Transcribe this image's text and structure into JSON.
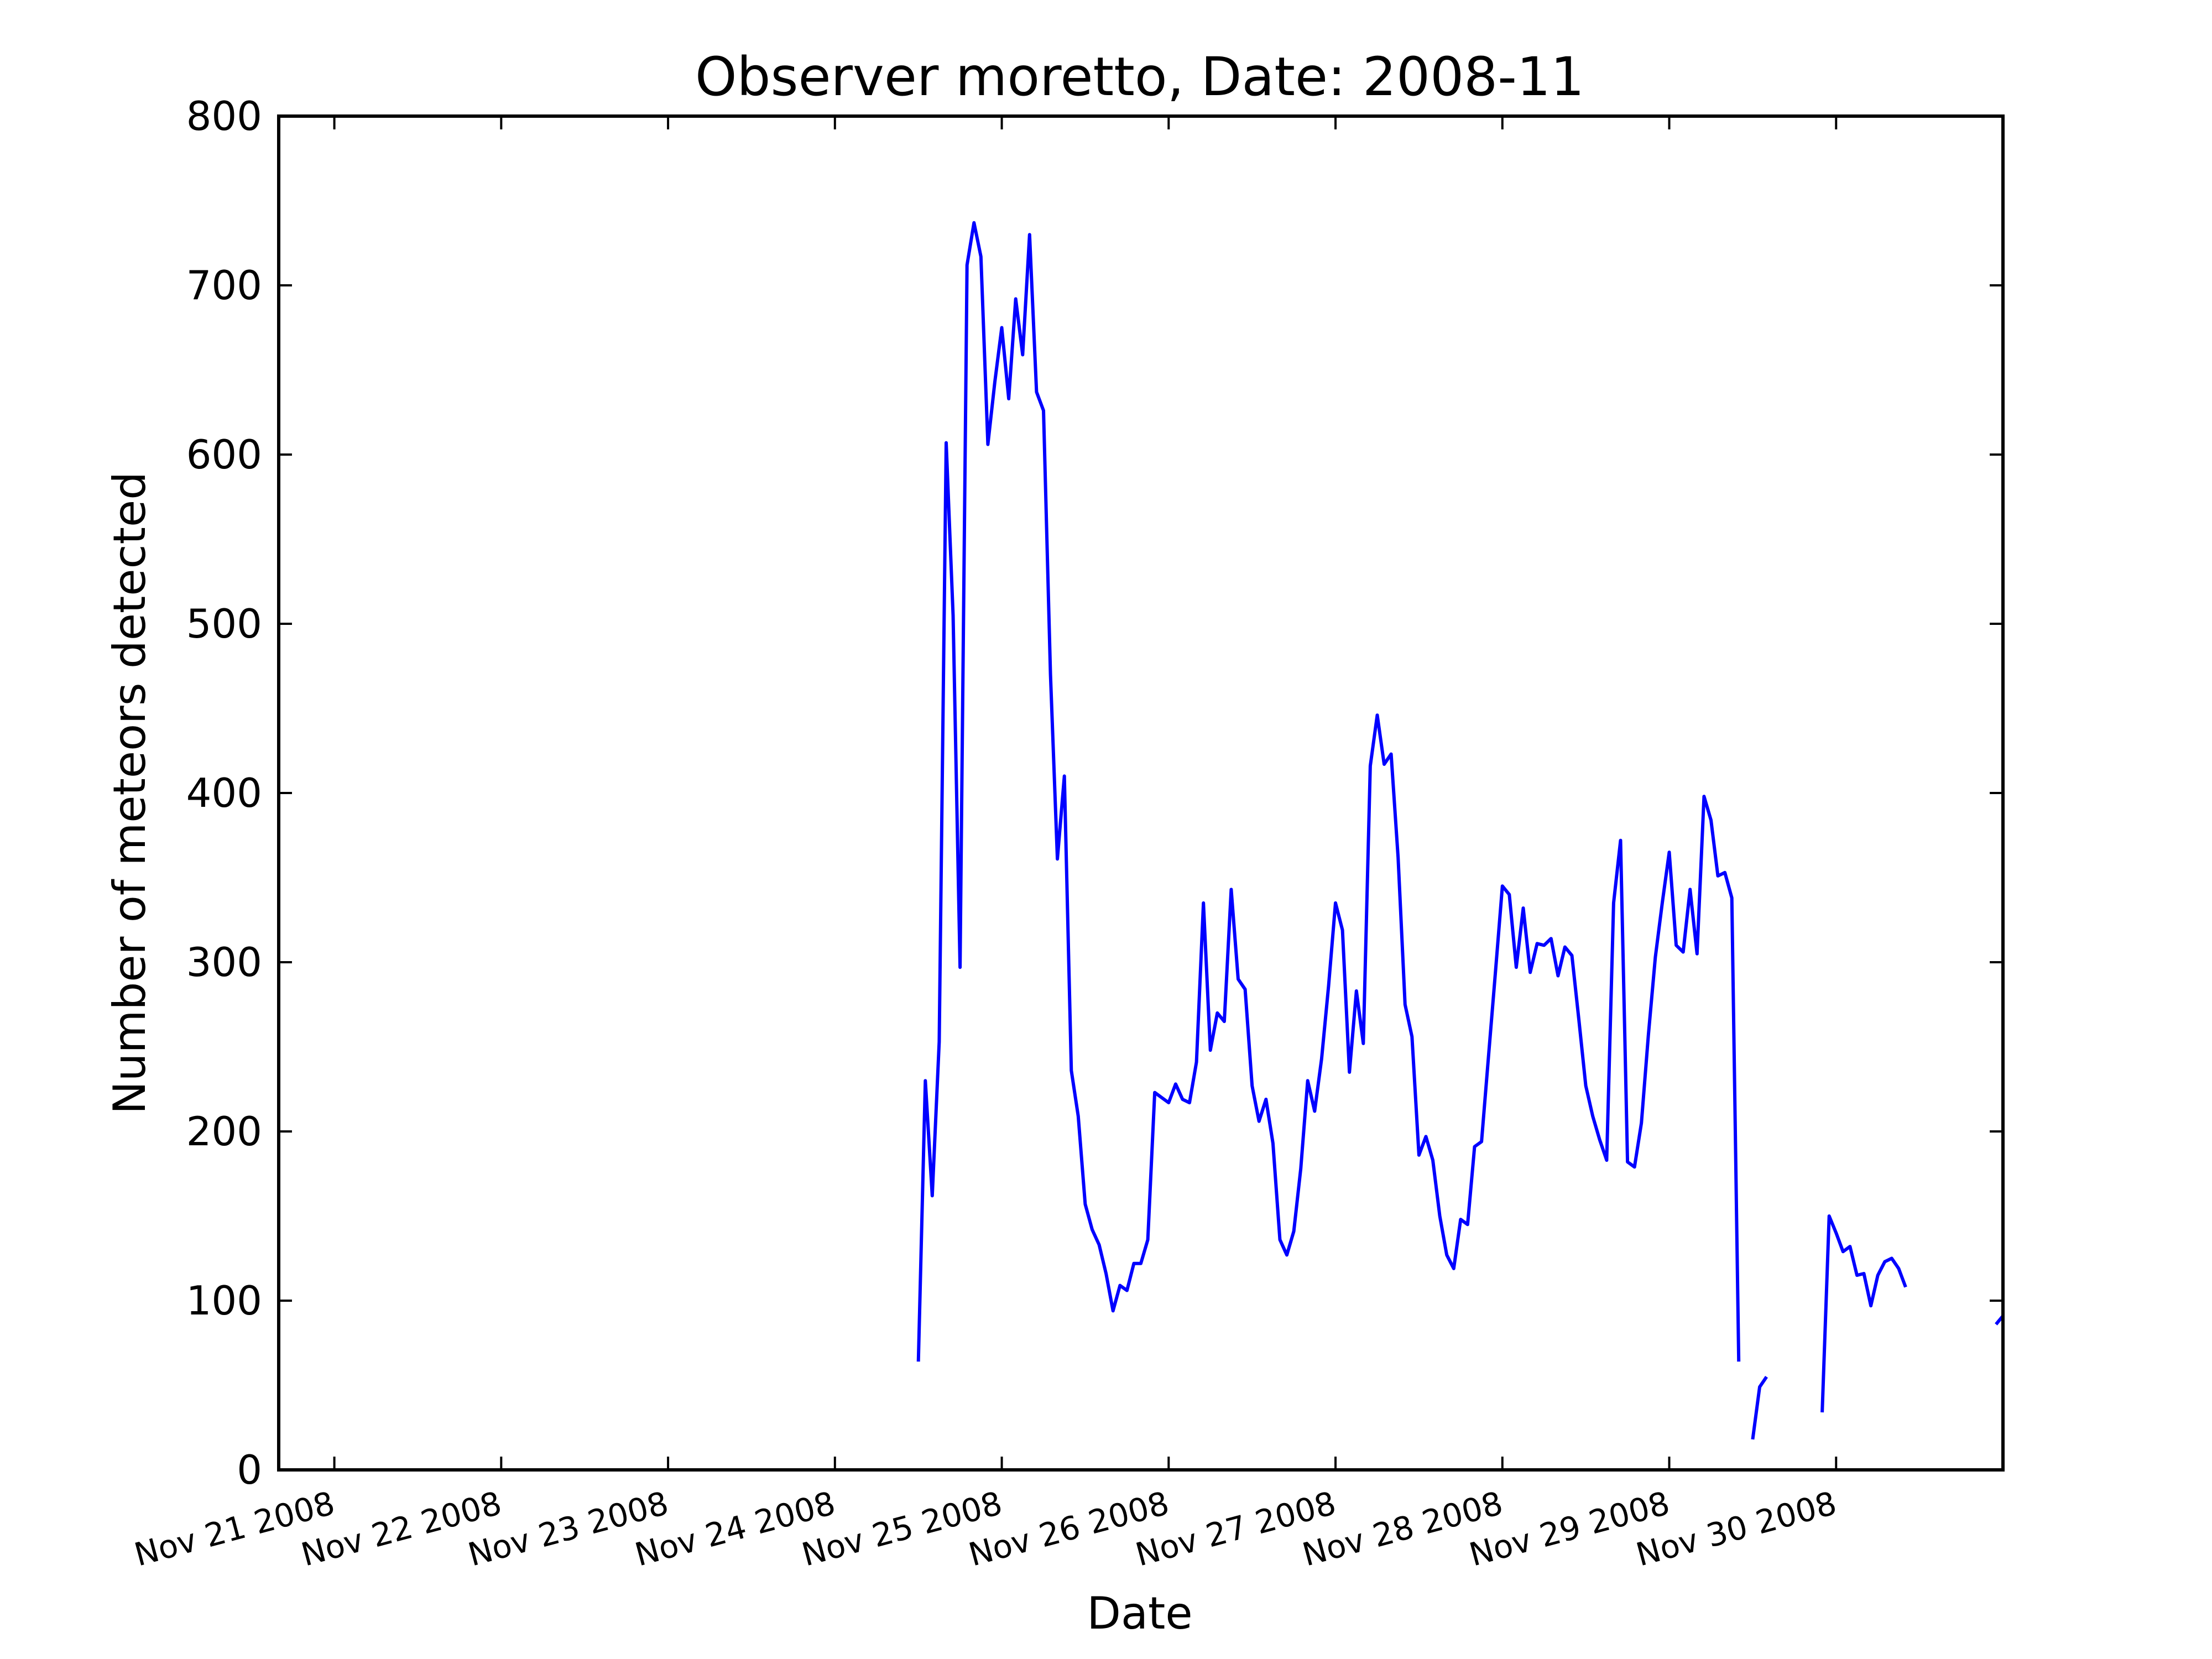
{
  "chart_data": {
    "type": "line",
    "title": "Observer moretto, Date: 2008-11",
    "xlabel": "Date",
    "ylabel": "Number of meteors detected",
    "xlim": [
      "2008-11-20 16:00",
      "2008-12-01 00:00"
    ],
    "ylim": [
      0,
      800
    ],
    "yticks": [
      0,
      100,
      200,
      300,
      400,
      500,
      600,
      700,
      800
    ],
    "xtick_dates": [
      "2008-11-21",
      "2008-11-22",
      "2008-11-23",
      "2008-11-24",
      "2008-11-25",
      "2008-11-26",
      "2008-11-27",
      "2008-11-28",
      "2008-11-29",
      "2008-11-30"
    ],
    "xtick_labels": [
      "Nov 21 2008",
      "Nov 22 2008",
      "Nov 23 2008",
      "Nov 24 2008",
      "Nov 25 2008",
      "Nov 26 2008",
      "Nov 27 2008",
      "Nov 28 2008",
      "Nov 29 2008",
      "Nov 30 2008"
    ],
    "grid": false,
    "line_color": "#0000ff",
    "series": [
      {
        "segments": [
          [
            [
              "2008-11-24 12:00",
              64
            ],
            [
              "2008-11-24 13:00",
              230
            ],
            [
              "2008-11-24 14:00",
              162
            ],
            [
              "2008-11-24 15:00",
              253
            ],
            [
              "2008-11-24 16:00",
              607
            ],
            [
              "2008-11-24 17:00",
              505
            ],
            [
              "2008-11-24 18:00",
              297
            ],
            [
              "2008-11-24 19:00",
              712
            ],
            [
              "2008-11-24 20:00",
              737
            ],
            [
              "2008-11-24 21:00",
              717
            ],
            [
              "2008-11-24 22:00",
              606
            ],
            [
              "2008-11-24 23:00",
              643
            ],
            [
              "2008-11-25 00:00",
              675
            ],
            [
              "2008-11-25 01:00",
              633
            ],
            [
              "2008-11-25 02:00",
              692
            ],
            [
              "2008-11-25 03:00",
              659
            ],
            [
              "2008-11-25 04:00",
              730
            ],
            [
              "2008-11-25 05:00",
              637
            ],
            [
              "2008-11-25 06:00",
              626
            ],
            [
              "2008-11-25 07:00",
              470
            ],
            [
              "2008-11-25 08:00",
              361
            ],
            [
              "2008-11-25 09:00",
              410
            ],
            [
              "2008-11-25 10:00",
              236
            ],
            [
              "2008-11-25 11:00",
              209
            ],
            [
              "2008-11-25 12:00",
              157
            ],
            [
              "2008-11-25 13:00",
              142
            ],
            [
              "2008-11-25 14:00",
              133
            ],
            [
              "2008-11-25 15:00",
              116
            ],
            [
              "2008-11-25 16:00",
              94
            ],
            [
              "2008-11-25 17:00",
              109
            ],
            [
              "2008-11-25 18:00",
              106
            ],
            [
              "2008-11-25 19:00",
              122
            ],
            [
              "2008-11-25 20:00",
              122
            ],
            [
              "2008-11-25 21:00",
              136
            ],
            [
              "2008-11-25 22:00",
              223
            ],
            [
              "2008-11-25 23:00",
              220
            ],
            [
              "2008-11-26 00:00",
              217
            ],
            [
              "2008-11-26 01:00",
              228
            ],
            [
              "2008-11-26 02:00",
              219
            ],
            [
              "2008-11-26 03:00",
              217
            ],
            [
              "2008-11-26 04:00",
              241
            ],
            [
              "2008-11-26 05:00",
              335
            ],
            [
              "2008-11-26 06:00",
              248
            ],
            [
              "2008-11-26 07:00",
              270
            ],
            [
              "2008-11-26 08:00",
              265
            ],
            [
              "2008-11-26 09:00",
              343
            ],
            [
              "2008-11-26 10:00",
              290
            ],
            [
              "2008-11-26 11:00",
              284
            ],
            [
              "2008-11-26 12:00",
              227
            ],
            [
              "2008-11-26 13:00",
              206
            ],
            [
              "2008-11-26 14:00",
              219
            ],
            [
              "2008-11-26 15:00",
              193
            ],
            [
              "2008-11-26 16:00",
              136
            ],
            [
              "2008-11-26 17:00",
              127
            ],
            [
              "2008-11-26 18:00",
              141
            ],
            [
              "2008-11-26 19:00",
              178
            ],
            [
              "2008-11-26 20:00",
              230
            ],
            [
              "2008-11-26 21:00",
              212
            ],
            [
              "2008-11-26 22:00",
              243
            ],
            [
              "2008-11-26 23:00",
              286
            ],
            [
              "2008-11-27 00:00",
              335
            ],
            [
              "2008-11-27 01:00",
              319
            ],
            [
              "2008-11-27 02:00",
              235
            ],
            [
              "2008-11-27 03:00",
              283
            ],
            [
              "2008-11-27 04:00",
              252
            ],
            [
              "2008-11-27 05:00",
              416
            ],
            [
              "2008-11-27 06:00",
              446
            ],
            [
              "2008-11-27 07:00",
              417
            ],
            [
              "2008-11-27 08:00",
              423
            ],
            [
              "2008-11-27 09:00",
              362
            ],
            [
              "2008-11-27 10:00",
              275
            ],
            [
              "2008-11-27 11:00",
              256
            ],
            [
              "2008-11-27 12:00",
              186
            ],
            [
              "2008-11-27 13:00",
              197
            ],
            [
              "2008-11-27 14:00",
              183
            ],
            [
              "2008-11-27 15:00",
              150
            ],
            [
              "2008-11-27 16:00",
              127
            ],
            [
              "2008-11-27 17:00",
              119
            ],
            [
              "2008-11-27 18:00",
              148
            ],
            [
              "2008-11-27 19:00",
              145
            ],
            [
              "2008-11-27 20:00",
              191
            ],
            [
              "2008-11-27 21:00",
              194
            ],
            [
              "2008-11-27 22:00",
              244
            ],
            [
              "2008-11-27 23:00",
              294
            ],
            [
              "2008-11-28 00:00",
              345
            ],
            [
              "2008-11-28 01:00",
              340
            ],
            [
              "2008-11-28 02:00",
              297
            ],
            [
              "2008-11-28 03:00",
              332
            ],
            [
              "2008-11-28 04:00",
              294
            ],
            [
              "2008-11-28 05:00",
              311
            ],
            [
              "2008-11-28 06:00",
              310
            ],
            [
              "2008-11-28 07:00",
              314
            ],
            [
              "2008-11-28 08:00",
              292
            ],
            [
              "2008-11-28 09:00",
              309
            ],
            [
              "2008-11-28 10:00",
              304
            ],
            [
              "2008-11-28 11:00",
              266
            ],
            [
              "2008-11-28 12:00",
              227
            ],
            [
              "2008-11-28 13:00",
              209
            ],
            [
              "2008-11-28 14:00",
              195
            ],
            [
              "2008-11-28 15:00",
              183
            ],
            [
              "2008-11-28 16:00",
              335
            ],
            [
              "2008-11-28 17:00",
              372
            ],
            [
              "2008-11-28 18:00",
              182
            ],
            [
              "2008-11-28 19:00",
              179
            ],
            [
              "2008-11-28 20:00",
              205
            ],
            [
              "2008-11-28 21:00",
              257
            ],
            [
              "2008-11-28 22:00",
              303
            ],
            [
              "2008-11-28 23:00",
              335
            ],
            [
              "2008-11-29 00:00",
              365
            ],
            [
              "2008-11-29 01:00",
              310
            ],
            [
              "2008-11-29 02:00",
              306
            ],
            [
              "2008-11-29 03:00",
              343
            ],
            [
              "2008-11-29 04:00",
              305
            ],
            [
              "2008-11-29 05:00",
              398
            ],
            [
              "2008-11-29 06:00",
              384
            ],
            [
              "2008-11-29 07:00",
              351
            ],
            [
              "2008-11-29 08:00",
              353
            ],
            [
              "2008-11-29 09:00",
              338
            ],
            [
              "2008-11-29 10:00",
              64
            ]
          ],
          [
            [
              "2008-11-29 12:00",
              18
            ],
            [
              "2008-11-29 13:00",
              49
            ],
            [
              "2008-11-29 14:00",
              55
            ]
          ],
          [
            [
              "2008-11-29 22:00",
              34
            ],
            [
              "2008-11-29 23:00",
              150
            ],
            [
              "2008-11-30 00:00",
              140
            ],
            [
              "2008-11-30 01:00",
              129
            ],
            [
              "2008-11-30 02:00",
              132
            ],
            [
              "2008-11-30 03:00",
              115
            ],
            [
              "2008-11-30 04:00",
              116
            ],
            [
              "2008-11-30 05:00",
              97
            ],
            [
              "2008-11-30 06:00",
              115
            ],
            [
              "2008-11-30 07:00",
              123
            ],
            [
              "2008-11-30 08:00",
              125
            ],
            [
              "2008-11-30 09:00",
              119
            ],
            [
              "2008-11-30 10:00",
              108
            ]
          ],
          [
            [
              "2008-11-30 23:00",
              86
            ],
            [
              "2008-12-01 00:00",
              91
            ]
          ]
        ]
      }
    ]
  }
}
